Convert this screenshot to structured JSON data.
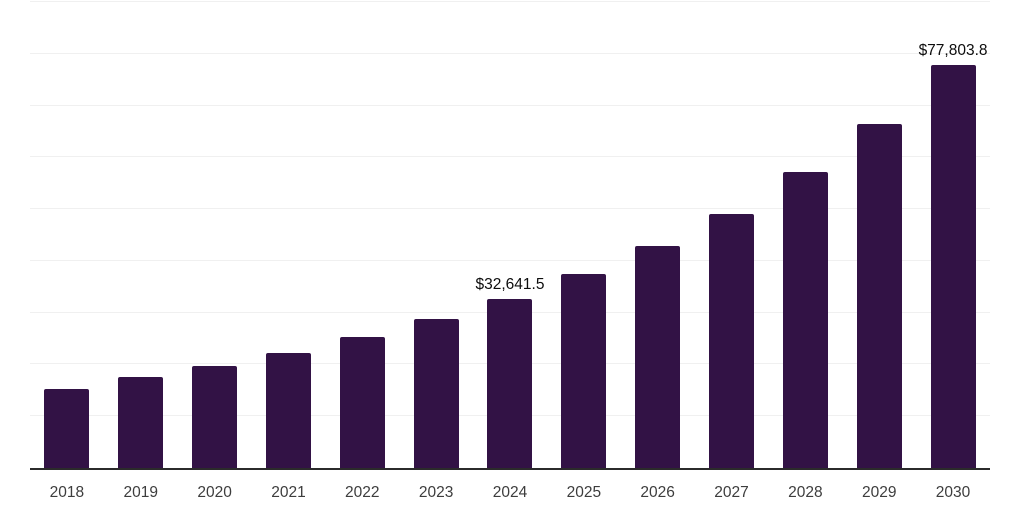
{
  "chart_data": {
    "type": "bar",
    "title": "",
    "xlabel": "",
    "ylabel": "",
    "categories": [
      "2018",
      "2019",
      "2020",
      "2021",
      "2022",
      "2023",
      "2024",
      "2025",
      "2026",
      "2027",
      "2028",
      "2029",
      "2030"
    ],
    "values": [
      15200,
      17600,
      19700,
      22300,
      25300,
      28800,
      32641.5,
      37400,
      42800,
      49100,
      57100,
      66400,
      77803.8
    ],
    "data_labels": [
      {
        "index": 6,
        "text": "$32,641.5"
      },
      {
        "index": 12,
        "text": "$77,803.8"
      }
    ],
    "ylim": [
      0,
      90000
    ],
    "gridline_step": 10000,
    "grid": true,
    "y_tick_labels_visible": false,
    "legend_position": "none",
    "bar_color": "#321245",
    "axis_line_color": "#2b2b2b",
    "gridline_color": "#f0f0f0",
    "label_color": "#0d0d0d",
    "tick_label_color": "#3d3d3d"
  }
}
